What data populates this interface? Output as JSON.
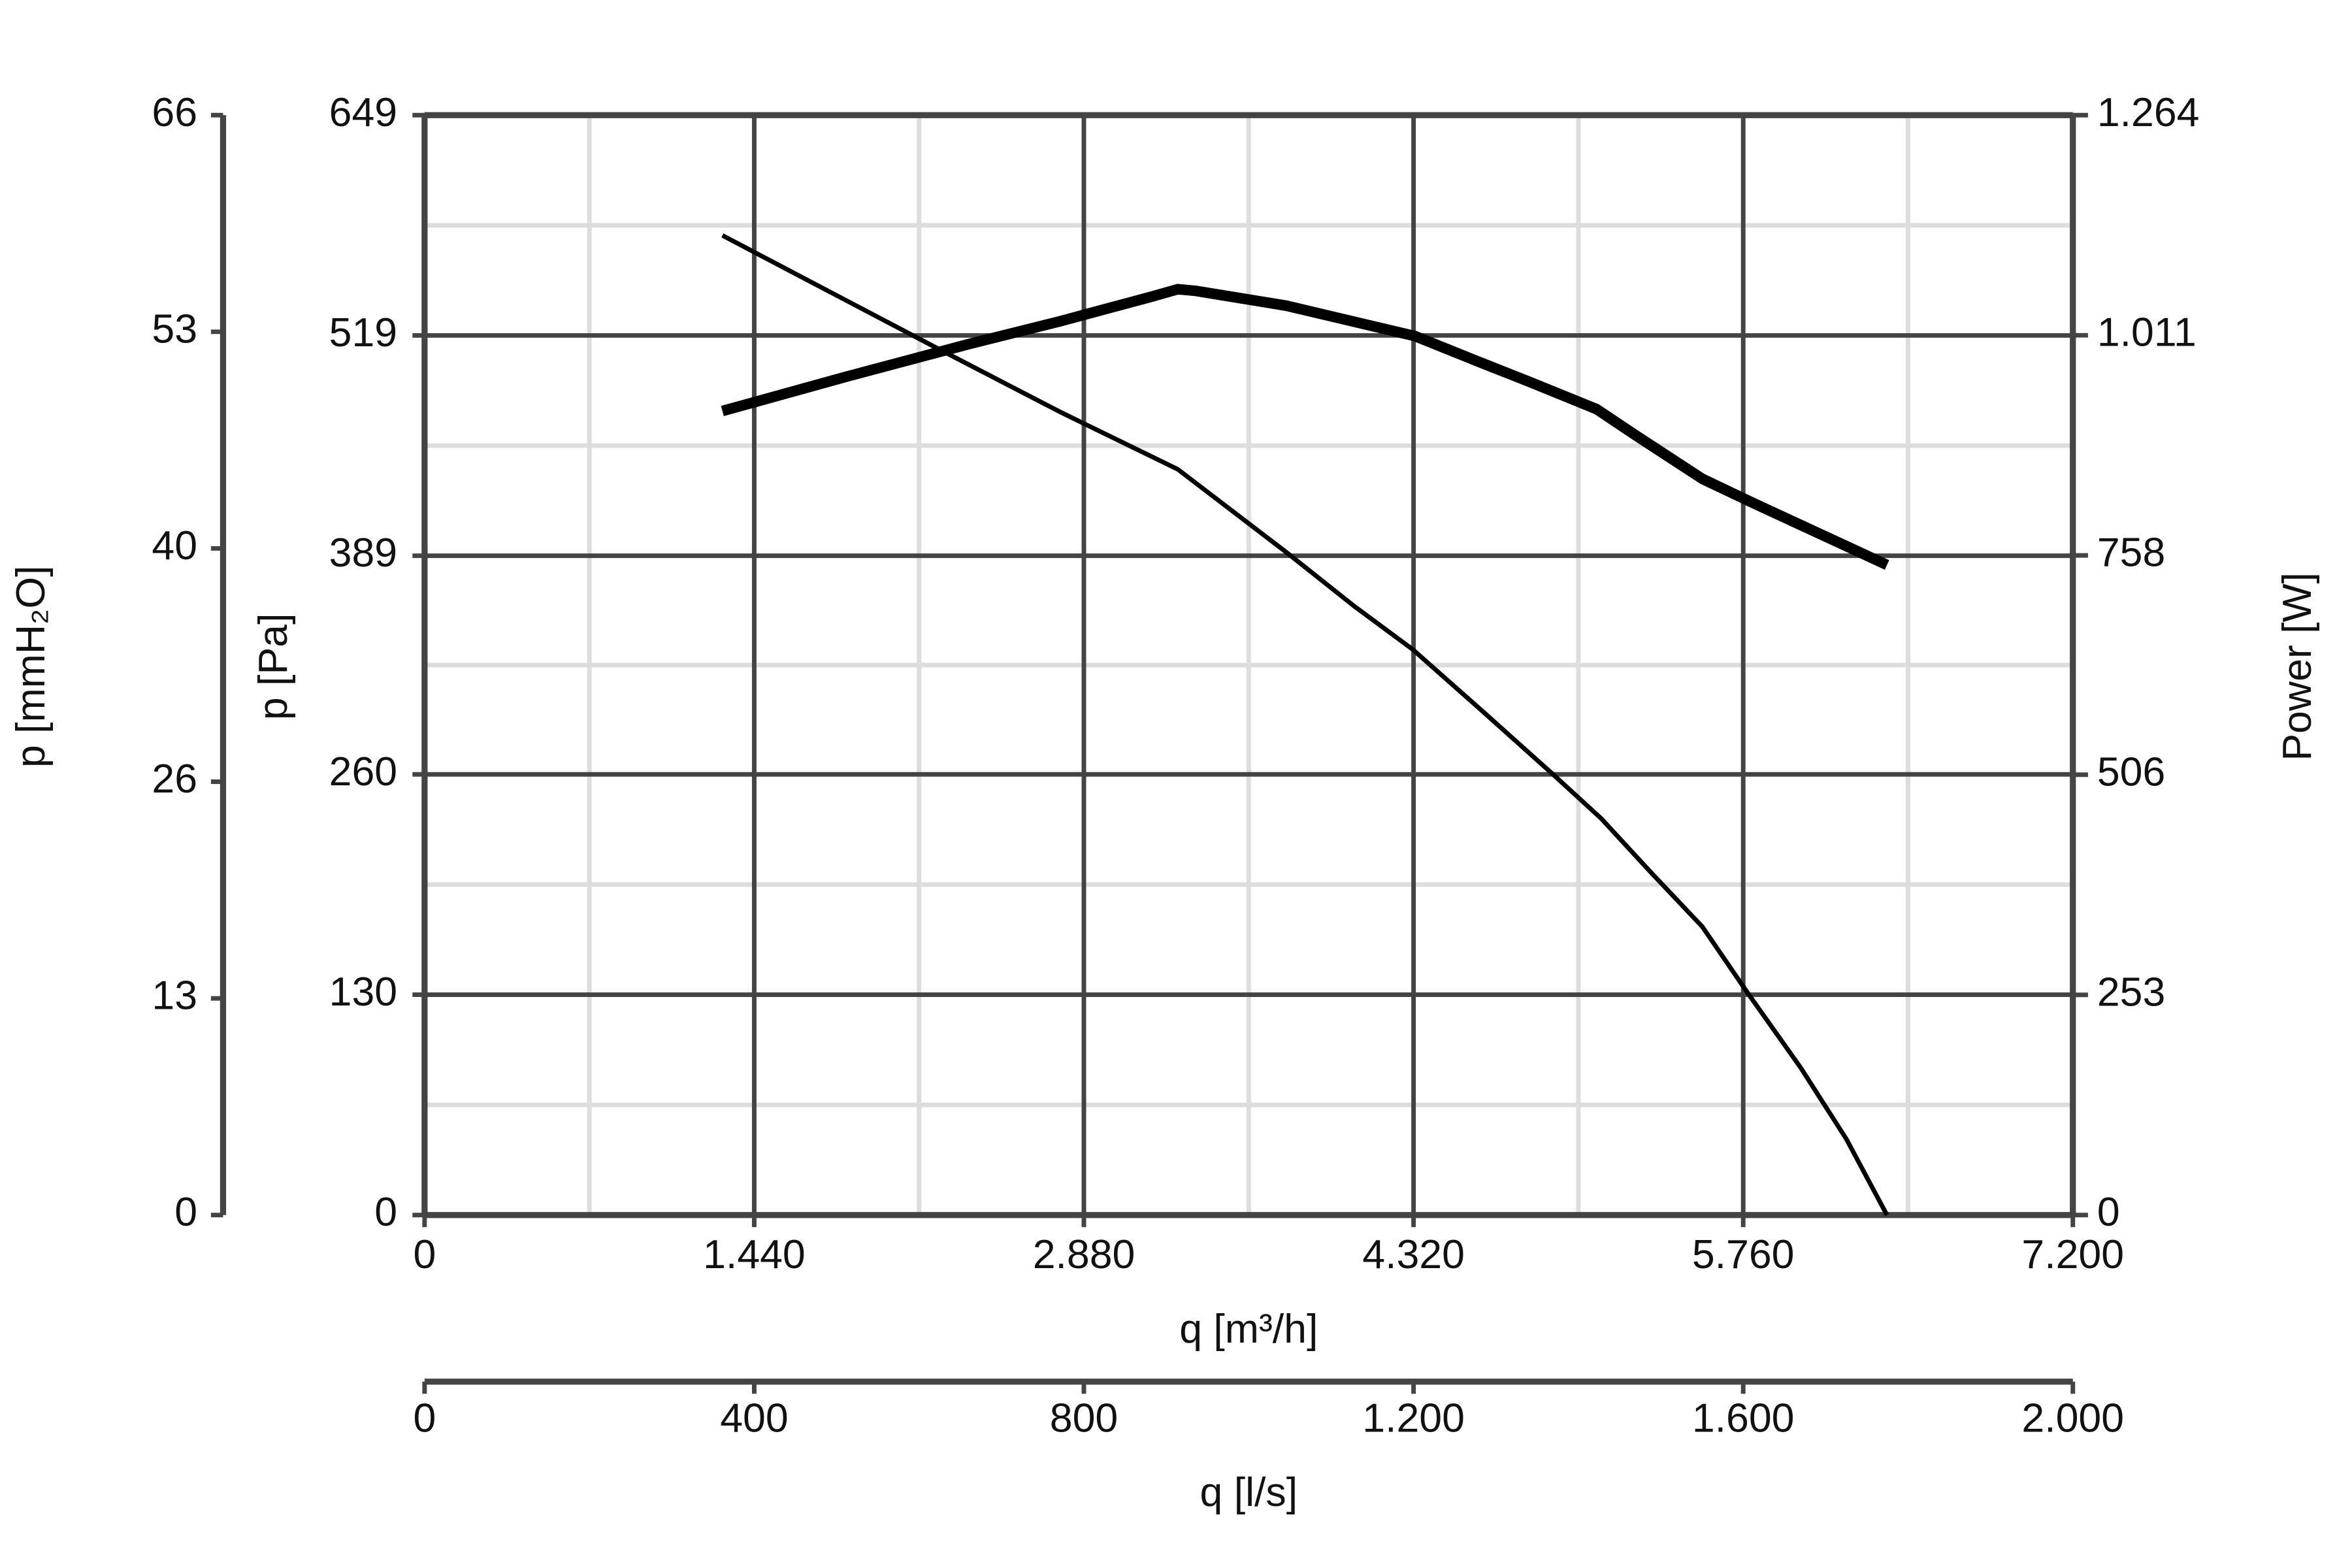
{
  "chart_data": {
    "type": "line",
    "xlabel": "q [m³/h]",
    "ylabel": "p [Pa]",
    "y2label": "Power [W]",
    "xlim": [
      0,
      7200
    ],
    "xticks": [
      0,
      {
        "value": 1440,
        "label": "1.440"
      },
      {
        "value": 2880,
        "label": "2.880"
      },
      {
        "value": 4320,
        "label": "4.320"
      },
      {
        "value": 5760,
        "label": "5.760"
      },
      {
        "value": 7200,
        "label": "7.200"
      }
    ],
    "ylim": [
      0,
      649
    ],
    "yticks": [
      0,
      130,
      260,
      389,
      519,
      649
    ],
    "y2lim": [
      0,
      1264
    ],
    "y2ticks": [
      0,
      253,
      506,
      758,
      {
        "value": 1011,
        "label": "1.011"
      },
      {
        "value": 1264,
        "label": "1.264"
      }
    ],
    "outer_left_axis": {
      "label": "p [mmH₂O]",
      "lim": [
        0,
        66
      ],
      "ticks": [
        0,
        13,
        26,
        40,
        53,
        66
      ]
    },
    "lower_x_axis": {
      "label": "q [l/s]",
      "lim": [
        0,
        2000
      ],
      "ticks": [
        0,
        400,
        800,
        {
          "value": 1200,
          "label": "1.200"
        },
        {
          "value": 1600,
          "label": "1.600"
        },
        {
          "value": 2000,
          "label": "2.000"
        }
      ]
    },
    "grid": true,
    "minor_grid": true,
    "series": [
      {
        "color": "#000000",
        "axis": "y",
        "x": [
          1301,
          2246,
          2775,
          3290,
          3765,
          4063,
          4314,
          4624,
          4921,
          5139,
          5351,
          5582,
          5780,
          6011,
          6210,
          6388
        ],
        "values": [
          578,
          511,
          474,
          440,
          391,
          359,
          334,
          297,
          261,
          234,
          203,
          170,
          131,
          87,
          45,
          0
        ]
      },
      {
        "color": "#000000",
        "axis": "y2",
        "x": [
          1301,
          1850,
          2378,
          2775,
          3171,
          3290,
          3369,
          3765,
          4327,
          4591,
          4822,
          5120,
          5285,
          5582,
          5813,
          6388
        ],
        "values": [
          924,
          964,
          1001,
          1027,
          1055,
          1064,
          1062,
          1045,
          1010,
          982,
          958,
          926,
          897,
          846,
          817,
          747
        ]
      }
    ]
  }
}
